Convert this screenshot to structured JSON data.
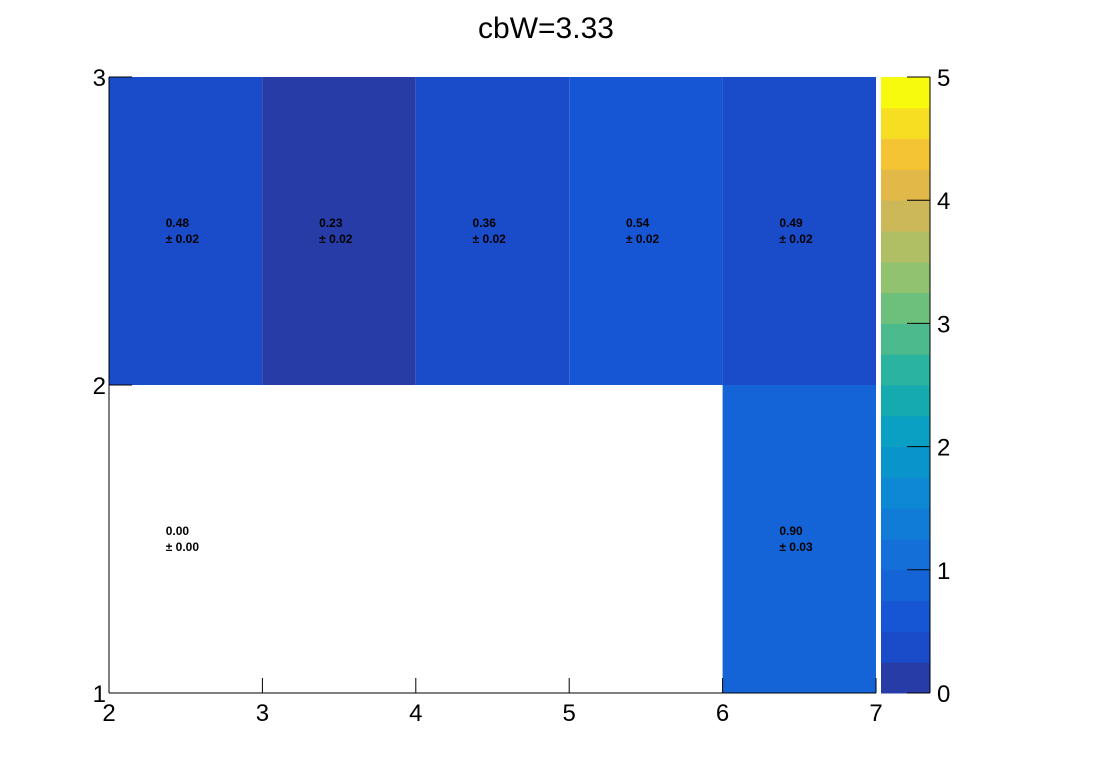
{
  "chart_data": {
    "type": "heatmap",
    "title": "cbW=3.33",
    "xlabel": "",
    "ylabel": "",
    "xlim": [
      2,
      7
    ],
    "ylim": [
      1,
      3
    ],
    "x_ticks": [
      "2",
      "3",
      "4",
      "5",
      "6",
      "7"
    ],
    "y_ticks": [
      "1",
      "2",
      "3"
    ],
    "x_edges": [
      2,
      3,
      4,
      5,
      6,
      7
    ],
    "y_edges": [
      1,
      2,
      3
    ],
    "cells": [
      {
        "x0": 2,
        "x1": 3,
        "y0": 2,
        "y1": 3,
        "value": 0.48,
        "error": 0.02,
        "filled": true
      },
      {
        "x0": 3,
        "x1": 4,
        "y0": 2,
        "y1": 3,
        "value": 0.23,
        "error": 0.02,
        "filled": true
      },
      {
        "x0": 4,
        "x1": 5,
        "y0": 2,
        "y1": 3,
        "value": 0.36,
        "error": 0.02,
        "filled": true
      },
      {
        "x0": 5,
        "x1": 6,
        "y0": 2,
        "y1": 3,
        "value": 0.54,
        "error": 0.02,
        "filled": true
      },
      {
        "x0": 6,
        "x1": 7,
        "y0": 2,
        "y1": 3,
        "value": 0.49,
        "error": 0.02,
        "filled": true
      },
      {
        "x0": 2,
        "x1": 6,
        "y0": 1,
        "y1": 2,
        "value": 0.0,
        "error": 0.0,
        "filled": false
      },
      {
        "x0": 6,
        "x1": 7,
        "y0": 1,
        "y1": 2,
        "value": 0.9,
        "error": 0.03,
        "filled": true
      }
    ],
    "value_labels": [
      {
        "value": "0.48",
        "error": "± 0.02"
      },
      {
        "value": "0.23",
        "error": "± 0.02"
      },
      {
        "value": "0.36",
        "error": "± 0.02"
      },
      {
        "value": "0.54",
        "error": "± 0.02"
      },
      {
        "value": "0.49",
        "error": "± 0.02"
      },
      {
        "value": "0.00",
        "error": "± 0.00"
      },
      {
        "value": "0.90",
        "error": "± 0.03"
      }
    ],
    "colorbar": {
      "zlim": [
        0,
        5
      ],
      "ticks": [
        "0",
        "1",
        "2",
        "3",
        "4",
        "5"
      ],
      "levels": 20,
      "colors": [
        "#283ca8",
        "#1a4bc8",
        "#1656d4",
        "#1464d8",
        "#1470d8",
        "#117cd8",
        "#0c88d4",
        "#0994cc",
        "#0aa0c4",
        "#14aab0",
        "#2ab4a0",
        "#4cba8c",
        "#6cc07c",
        "#90c270",
        "#b0be64",
        "#ccb858",
        "#e2b848",
        "#f4c434",
        "#f8de22",
        "#f8fa0e"
      ]
    },
    "grid": false,
    "legend": "none"
  }
}
